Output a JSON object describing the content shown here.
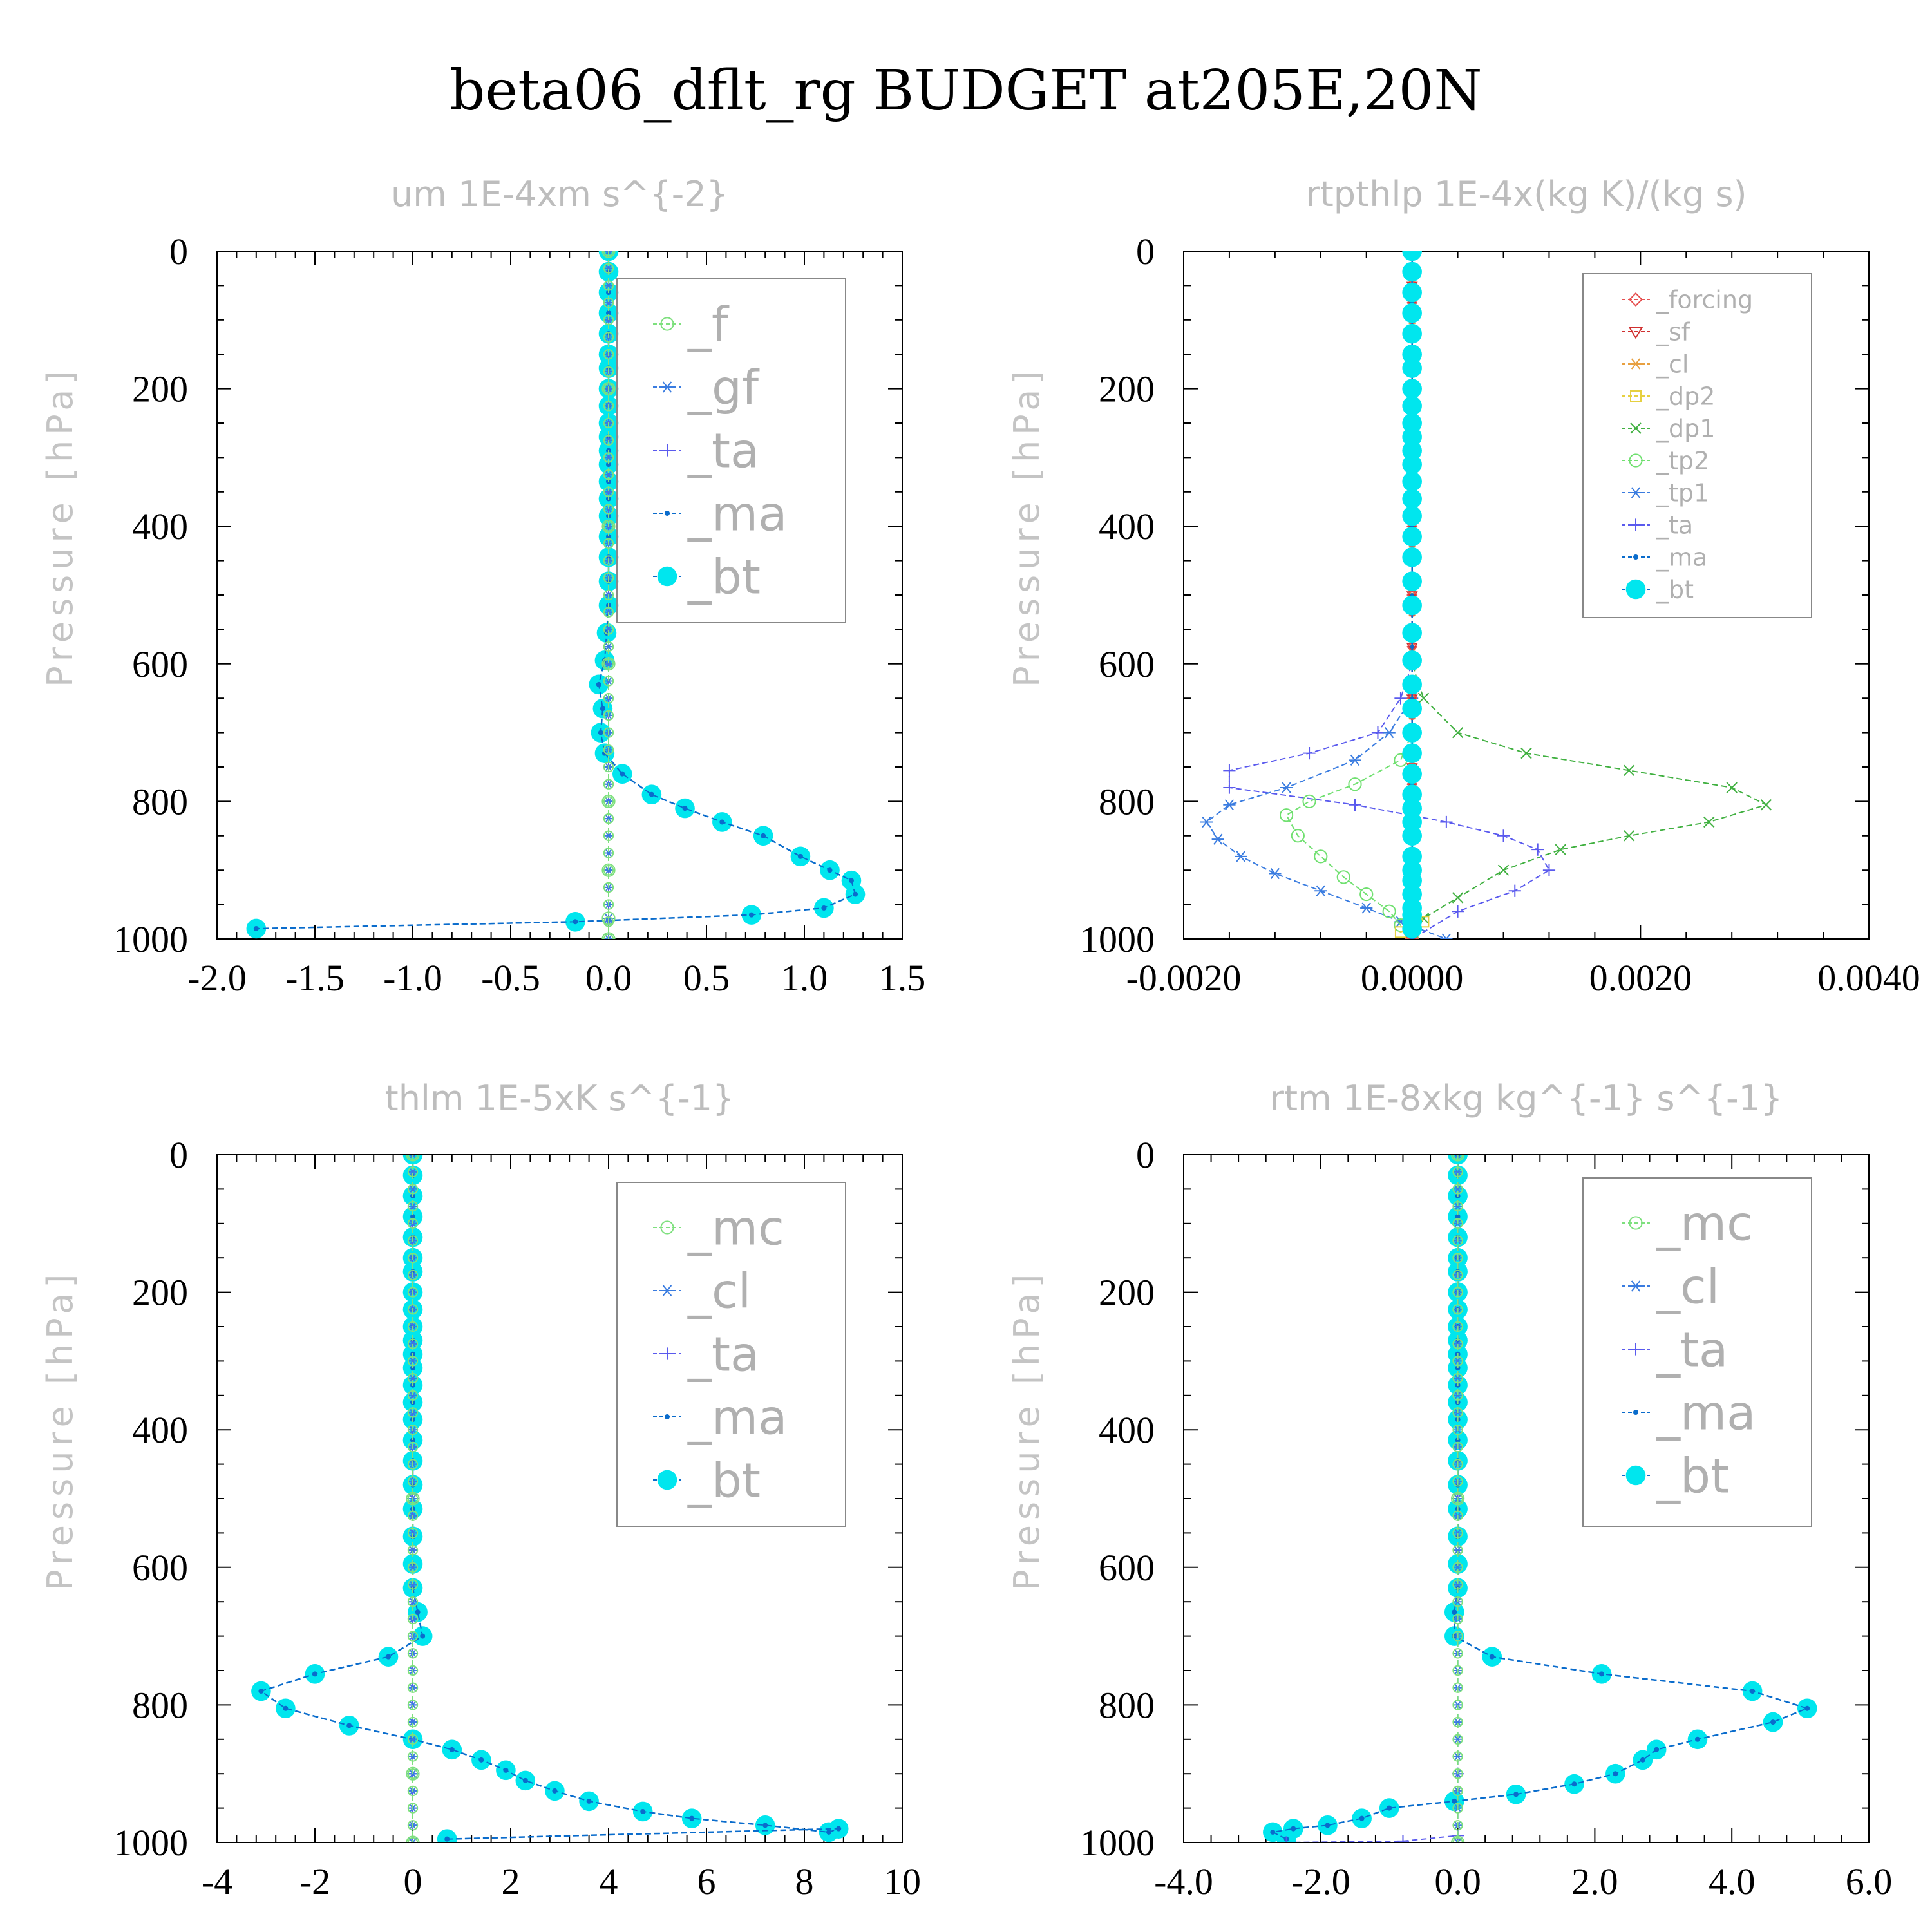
{
  "title": "beta06_dflt_rg  BUDGET at205E,20N",
  "yaxis_label": "Pressure [hPa]",
  "colors": {
    "bt": "#00e6ee",
    "ma": "#0a6ccc",
    "ta": "#5a5aee",
    "gf": "#3a7ce0",
    "cl": "#3a7ce0",
    "f": "#7ee07e",
    "mc": "#7ee07e",
    "forcing": "#e65050",
    "sf": "#d03030",
    "cl_rtp": "#e8a040",
    "dp2": "#e6d040",
    "dp1": "#40b040",
    "tp2": "#70e070",
    "tp1": "#3a7ce0",
    "ta_rtp": "#5a5aee",
    "ma_rtp": "#0a6ccc"
  },
  "chart_data": [
    {
      "type": "line",
      "title": "um   1E-4xm s^{-2}",
      "ylabel": "Pressure [hPa]",
      "xlim": [
        -2.0,
        1.5
      ],
      "ylim": [
        1000,
        0
      ],
      "xticks": [
        -2.0,
        -1.5,
        -1.0,
        -0.5,
        0.0,
        0.5,
        1.0,
        1.5
      ],
      "xtick_labels": [
        "-2.0",
        "-1.5",
        "-1.0",
        "-0.5",
        "0.0",
        "0.5",
        "1.0",
        "1.5"
      ],
      "yticks": [
        0,
        200,
        400,
        600,
        800,
        1000
      ],
      "ytick_labels": [
        "0",
        "200",
        "400",
        "600",
        "800",
        "1000"
      ],
      "legend": [
        "_f",
        "_gf",
        "_ta",
        "_ma",
        "_bt"
      ],
      "series": [
        {
          "name": "_bt",
          "x": [
            0,
            0,
            0,
            0,
            0,
            0,
            0,
            0,
            0,
            0,
            0,
            0,
            0,
            0,
            0,
            0,
            0,
            0,
            0,
            0,
            -0.01,
            -0.02,
            -0.05,
            -0.03,
            -0.04,
            -0.02,
            0.07,
            0.22,
            0.39,
            0.58,
            0.79,
            0.98,
            1.13,
            1.24,
            1.26,
            1.1,
            0.73,
            -0.17,
            -1.8
          ],
          "y": [
            0,
            30,
            60,
            90,
            120,
            150,
            170,
            200,
            225,
            250,
            270,
            290,
            310,
            335,
            360,
            385,
            415,
            445,
            480,
            515,
            555,
            595,
            630,
            665,
            700,
            730,
            760,
            790,
            810,
            830,
            850,
            880,
            900,
            915,
            935,
            955,
            965,
            975,
            985
          ]
        },
        {
          "name": "_ma",
          "x": [
            0,
            0,
            0,
            0,
            0,
            0,
            0,
            0,
            0,
            0,
            0,
            0,
            0,
            0,
            0,
            0,
            0,
            0,
            0,
            0,
            -0.01,
            -0.02,
            -0.05,
            -0.03,
            -0.04,
            -0.02,
            0.07,
            0.22,
            0.39,
            0.58,
            0.79,
            0.98,
            1.13,
            1.24,
            1.26,
            1.1,
            0.73,
            -0.17,
            -1.8
          ],
          "y": [
            0,
            30,
            60,
            90,
            120,
            150,
            170,
            200,
            225,
            250,
            270,
            290,
            310,
            335,
            360,
            385,
            415,
            445,
            480,
            515,
            555,
            595,
            630,
            665,
            700,
            730,
            760,
            790,
            810,
            830,
            850,
            880,
            900,
            915,
            935,
            955,
            965,
            975,
            985
          ]
        },
        {
          "name": "_ta",
          "x": [
            0,
            0,
            0,
            0,
            0,
            0,
            0,
            0
          ],
          "y": [
            0,
            200,
            400,
            600,
            800,
            900,
            970,
            1000
          ]
        },
        {
          "name": "_gf",
          "x": [
            0,
            0,
            0,
            0,
            0,
            0,
            0,
            0
          ],
          "y": [
            0,
            200,
            400,
            600,
            800,
            900,
            970,
            1000
          ]
        },
        {
          "name": "_f",
          "x": [
            0,
            0,
            0,
            0,
            0,
            0,
            0,
            0
          ],
          "y": [
            0,
            200,
            400,
            600,
            800,
            900,
            970,
            1000
          ]
        }
      ]
    },
    {
      "type": "line",
      "title": "rtpthlp   1E-4x(kg K)/(kg s)",
      "ylabel": "Pressure [hPa]",
      "xlim": [
        -0.002,
        0.004
      ],
      "ylim": [
        1000,
        0
      ],
      "xticks": [
        -0.002,
        0.0,
        0.002,
        0.004
      ],
      "xtick_labels": [
        "-0.0020",
        "0.0000",
        "0.0020",
        "0.0040"
      ],
      "yticks": [
        0,
        200,
        400,
        600,
        800,
        1000
      ],
      "ytick_labels": [
        "0",
        "200",
        "400",
        "600",
        "800",
        "1000"
      ],
      "legend": [
        "_forcing",
        "_sf",
        "_cl",
        "_dp2",
        "_dp1",
        "_tp2",
        "_tp1",
        "_ta",
        "_ma",
        "_bt"
      ],
      "series": [
        {
          "name": "_dp1",
          "x": [
            0,
            0,
            0.0001,
            0.0004,
            0.001,
            0.0019,
            0.0028,
            0.0031,
            0.0026,
            0.0019,
            0.0013,
            0.0008,
            0.0004,
            0.0001,
            0.0
          ],
          "y": [
            0,
            600,
            650,
            700,
            730,
            755,
            780,
            805,
            830,
            850,
            870,
            900,
            940,
            970,
            1000
          ]
        },
        {
          "name": "_ta",
          "x": [
            0,
            0,
            -0.0001,
            -0.0003,
            -0.0009,
            -0.0016,
            -0.0016,
            -0.0005,
            0.0003,
            0.0008,
            0.0011,
            0.0012,
            0.0009,
            0.0004,
            0.0
          ],
          "y": [
            0,
            600,
            650,
            700,
            730,
            755,
            780,
            805,
            830,
            850,
            870,
            900,
            930,
            960,
            1000
          ]
        },
        {
          "name": "_tp1",
          "x": [
            0,
            0,
            -0.0002,
            -0.0005,
            -0.0011,
            -0.0016,
            -0.0018,
            -0.0017,
            -0.0015,
            -0.0012,
            -0.0008,
            -0.0004,
            -0.0001,
            0.0003
          ],
          "y": [
            0,
            650,
            700,
            740,
            780,
            805,
            830,
            855,
            880,
            905,
            930,
            955,
            975,
            1000
          ]
        },
        {
          "name": "_tp2",
          "x": [
            0,
            0,
            -0.0001,
            -0.0005,
            -0.0009,
            -0.0011,
            -0.001,
            -0.0008,
            -0.0006,
            -0.0004,
            -0.0002,
            -0.0001,
            0.0
          ],
          "y": [
            0,
            700,
            740,
            775,
            800,
            820,
            850,
            880,
            910,
            935,
            960,
            980,
            1000
          ]
        },
        {
          "name": "_dp2",
          "x": [
            0,
            0,
            0.0001,
            -0.0001,
            0.0
          ],
          "y": [
            0,
            950,
            975,
            990,
            1000
          ]
        },
        {
          "name": "_cl",
          "x": [
            0,
            0
          ],
          "y": [
            0,
            1000
          ]
        },
        {
          "name": "_sf",
          "x": [
            0,
            0
          ],
          "y": [
            0,
            1000
          ]
        },
        {
          "name": "_forcing",
          "x": [
            0,
            0
          ],
          "y": [
            0,
            1000
          ]
        },
        {
          "name": "_ma",
          "x": [
            0,
            0
          ],
          "y": [
            0,
            1000
          ]
        },
        {
          "name": "_bt",
          "x": [
            0,
            0,
            0,
            0,
            0,
            0,
            0,
            0,
            0,
            0,
            0,
            0,
            0,
            0,
            0,
            0,
            0,
            0,
            0,
            0,
            0,
            0,
            0,
            0,
            0,
            0,
            0,
            0,
            0,
            0,
            0,
            0,
            0,
            0,
            0,
            0,
            0,
            0,
            0
          ],
          "y": [
            0,
            30,
            60,
            90,
            120,
            150,
            170,
            200,
            225,
            250,
            270,
            290,
            310,
            335,
            360,
            385,
            415,
            445,
            480,
            515,
            555,
            595,
            630,
            665,
            700,
            730,
            760,
            790,
            810,
            830,
            850,
            880,
            900,
            915,
            935,
            955,
            965,
            975,
            985
          ]
        }
      ]
    },
    {
      "type": "line",
      "title": "thlm   1E-5xK s^{-1}",
      "ylabel": "Pressure [hPa]",
      "xlim": [
        -4,
        10
      ],
      "ylim": [
        1000,
        0
      ],
      "xticks": [
        -4,
        -2,
        0,
        2,
        4,
        6,
        8,
        10
      ],
      "xtick_labels": [
        "-4",
        "-2",
        "0",
        "2",
        "4",
        "6",
        "8",
        "10"
      ],
      "yticks": [
        0,
        200,
        400,
        600,
        800,
        1000
      ],
      "ytick_labels": [
        "0",
        "200",
        "400",
        "600",
        "800",
        "1000"
      ],
      "legend": [
        "_mc",
        "_cl",
        "_ta",
        "_ma",
        "_bt"
      ],
      "series": [
        {
          "name": "_bt",
          "x": [
            0,
            0,
            0,
            0,
            0,
            0,
            0,
            0,
            0,
            0,
            0,
            0,
            0,
            0,
            0,
            0,
            0,
            0,
            0,
            0,
            0,
            0,
            0,
            0.1,
            0.2,
            -0.5,
            -2.0,
            -3.1,
            -2.6,
            -1.3,
            0.0,
            0.8,
            1.4,
            1.9,
            2.3,
            2.9,
            3.6,
            4.7,
            5.7,
            7.2,
            8.5,
            8.7,
            0.7
          ],
          "y": [
            0,
            30,
            60,
            90,
            120,
            150,
            170,
            200,
            225,
            250,
            270,
            290,
            310,
            335,
            360,
            385,
            415,
            445,
            480,
            515,
            555,
            595,
            630,
            665,
            700,
            730,
            755,
            780,
            805,
            830,
            850,
            865,
            880,
            895,
            910,
            925,
            940,
            955,
            965,
            975,
            985,
            980,
            995
          ]
        },
        {
          "name": "_ma",
          "x": [
            0,
            0,
            0,
            0,
            0,
            0,
            0,
            0,
            0,
            0,
            0,
            0,
            0,
            0,
            0,
            0,
            0,
            0,
            0,
            0,
            0,
            0,
            0,
            0.1,
            0.2,
            -0.5,
            -2.0,
            -3.1,
            -2.6,
            -1.3,
            0.0,
            0.8,
            1.4,
            1.9,
            2.3,
            2.9,
            3.6,
            4.7,
            5.7,
            7.2,
            8.5,
            8.7,
            0.7
          ],
          "y": [
            0,
            30,
            60,
            90,
            120,
            150,
            170,
            200,
            225,
            250,
            270,
            290,
            310,
            335,
            360,
            385,
            415,
            445,
            480,
            515,
            555,
            595,
            630,
            665,
            700,
            730,
            755,
            780,
            805,
            830,
            850,
            865,
            880,
            895,
            910,
            925,
            940,
            955,
            965,
            975,
            985,
            980,
            995
          ]
        },
        {
          "name": "_ta",
          "x": [
            0,
            0,
            0,
            0
          ],
          "y": [
            0,
            500,
            900,
            1000
          ]
        },
        {
          "name": "_cl",
          "x": [
            0,
            0,
            0,
            0
          ],
          "y": [
            0,
            500,
            900,
            1000
          ]
        },
        {
          "name": "_mc",
          "x": [
            0,
            0,
            0,
            0
          ],
          "y": [
            0,
            500,
            900,
            1000
          ]
        }
      ]
    },
    {
      "type": "line",
      "title": "rtm   1E-8xkg kg^{-1} s^{-1}",
      "ylabel": "Pressure [hPa]",
      "xlim": [
        -4.0,
        6.0
      ],
      "ylim": [
        1000,
        0
      ],
      "xticks": [
        -4.0,
        -2.0,
        0.0,
        2.0,
        4.0,
        6.0
      ],
      "xtick_labels": [
        "-4.0",
        "-2.0",
        "0.0",
        "2.0",
        "4.0",
        "6.0"
      ],
      "yticks": [
        0,
        200,
        400,
        600,
        800,
        1000
      ],
      "ytick_labels": [
        "0",
        "200",
        "400",
        "600",
        "800",
        "1000"
      ],
      "legend": [
        "_mc",
        "_cl",
        "_ta",
        "_ma",
        "_bt"
      ],
      "series": [
        {
          "name": "_bt",
          "x": [
            0,
            0,
            0,
            0,
            0,
            0,
            0,
            0,
            0,
            0,
            0,
            0,
            0,
            0,
            0,
            0,
            0,
            0,
            0,
            0,
            0,
            0,
            0,
            -0.05,
            -0.05,
            0.5,
            2.1,
            4.3,
            5.1,
            4.6,
            3.5,
            2.9,
            2.7,
            2.3,
            1.7,
            0.85,
            -0.05,
            -1.0,
            -1.4,
            -1.9,
            -2.4,
            -2.7,
            -2.5
          ],
          "y": [
            0,
            30,
            60,
            90,
            120,
            150,
            170,
            200,
            225,
            250,
            270,
            290,
            310,
            335,
            360,
            385,
            415,
            445,
            480,
            515,
            555,
            595,
            630,
            665,
            700,
            730,
            755,
            780,
            805,
            825,
            850,
            865,
            880,
            900,
            915,
            930,
            940,
            950,
            965,
            975,
            980,
            985,
            995
          ]
        },
        {
          "name": "_ma",
          "x": [
            0,
            0,
            0,
            0,
            0,
            0,
            0,
            0,
            0,
            0,
            0,
            0,
            0,
            0,
            0,
            0,
            0,
            0,
            0,
            0,
            0,
            0,
            0,
            -0.05,
            -0.05,
            0.5,
            2.1,
            4.3,
            5.1,
            4.6,
            3.5,
            2.9,
            2.7,
            2.3,
            1.7,
            0.85,
            -0.05,
            -1.0,
            -1.4,
            -1.9,
            -2.4,
            -2.7,
            -2.5
          ],
          "y": [
            0,
            30,
            60,
            90,
            120,
            150,
            170,
            200,
            225,
            250,
            270,
            290,
            310,
            335,
            360,
            385,
            415,
            445,
            480,
            515,
            555,
            595,
            630,
            665,
            700,
            730,
            755,
            780,
            805,
            825,
            850,
            865,
            880,
            900,
            915,
            930,
            940,
            950,
            965,
            975,
            980,
            985,
            995
          ]
        },
        {
          "name": "_ta",
          "x": [
            0,
            0,
            0,
            0,
            -0.8,
            -2.5
          ],
          "y": [
            0,
            500,
            900,
            990,
            998,
            1000
          ]
        },
        {
          "name": "_cl",
          "x": [
            0,
            0,
            0
          ],
          "y": [
            0,
            500,
            1000
          ]
        },
        {
          "name": "_mc",
          "x": [
            0,
            0,
            0
          ],
          "y": [
            0,
            500,
            1000
          ]
        }
      ]
    }
  ]
}
